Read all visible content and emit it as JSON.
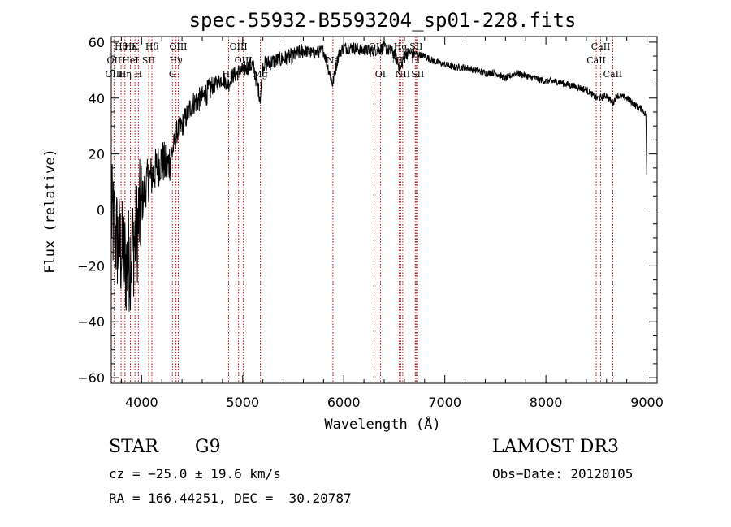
{
  "chart_data": {
    "type": "line",
    "title": "spec-55932-B5593204_sp01-228.fits",
    "xlabel": "Wavelength (Å)",
    "ylabel": "Flux (relative)",
    "xlim": [
      3700,
      9100
    ],
    "ylim": [
      -62,
      62
    ],
    "xticks": [
      4000,
      5000,
      6000,
      7000,
      8000,
      9000
    ],
    "yticks": [
      -60,
      -40,
      -20,
      0,
      20,
      40,
      60
    ],
    "series": [
      {
        "name": "spectrum",
        "x": [
          3700,
          3750,
          3800,
          3850,
          3900,
          3950,
          4000,
          4050,
          4100,
          4150,
          4200,
          4250,
          4300,
          4350,
          4400,
          4500,
          4600,
          4700,
          4800,
          4860,
          4900,
          5000,
          5100,
          5175,
          5200,
          5300,
          5400,
          5500,
          5600,
          5700,
          5800,
          5890,
          5950,
          6000,
          6100,
          6200,
          6300,
          6400,
          6500,
          6563,
          6600,
          6700,
          6800,
          6900,
          7000,
          7100,
          7200,
          7300,
          7400,
          7500,
          7600,
          7700,
          7800,
          7900,
          8000,
          8100,
          8200,
          8300,
          8400,
          8498,
          8542,
          8600,
          8662,
          8700,
          8800,
          8900,
          8950,
          8990,
          9000
        ],
        "y": [
          -2,
          -10,
          -15,
          -20,
          -15,
          -8,
          2,
          10,
          12,
          15,
          18,
          15,
          20,
          28,
          30,
          38,
          40,
          44,
          47,
          45,
          48,
          50,
          52,
          40,
          52,
          53,
          54,
          55,
          57,
          56,
          57,
          45,
          56,
          58,
          58,
          57,
          57,
          58,
          56,
          50,
          56,
          56,
          55,
          53,
          52,
          51,
          51,
          50,
          49,
          49,
          47,
          49,
          48,
          47,
          46,
          46,
          45,
          44,
          43,
          40,
          40,
          41,
          38,
          41,
          40,
          37,
          36,
          34,
          6
        ]
      }
    ],
    "line_markers": [
      {
        "label": "Hθ",
        "x": 3797,
        "row": 1
      },
      {
        "label": "OII",
        "x": 3727,
        "row": 2
      },
      {
        "label": "OIII",
        "x": 3727,
        "row": 3
      },
      {
        "label": "Hε",
        "x": 3889,
        "row": 1
      },
      {
        "label": "HeI",
        "x": 3889,
        "row": 2
      },
      {
        "label": "Hη",
        "x": 3835,
        "row": 3
      },
      {
        "label": "K",
        "x": 3934,
        "row": 1
      },
      {
        "label": "SII",
        "x": 4070,
        "row": 2
      },
      {
        "label": "H",
        "x": 3968,
        "row": 3
      },
      {
        "label": "Hδ",
        "x": 4102,
        "row": 1
      },
      {
        "label": "OIII",
        "x": 4363,
        "row": 1
      },
      {
        "label": "Hγ",
        "x": 4340,
        "row": 2
      },
      {
        "label": "G",
        "x": 4305,
        "row": 3
      },
      {
        "label": "OIII",
        "x": 4959,
        "row": 1
      },
      {
        "label": "OIII",
        "x": 5007,
        "row": 2
      },
      {
        "label": "Hβ",
        "x": 4861,
        "row": 3
      },
      {
        "label": "Mg",
        "x": 5175,
        "row": 3
      },
      {
        "label": "Na",
        "x": 5893,
        "row": 2
      },
      {
        "label": "OI",
        "x": 6300,
        "row": 1
      },
      {
        "label": "OI",
        "x": 6363,
        "row": 3
      },
      {
        "label": "Hα",
        "x": 6563,
        "row": 1
      },
      {
        "label": "SII",
        "x": 6716,
        "row": 1
      },
      {
        "label": "NII",
        "x": 6548,
        "row": 2
      },
      {
        "label": "Li",
        "x": 6708,
        "row": 2
      },
      {
        "label": "NII",
        "x": 6584,
        "row": 3
      },
      {
        "label": "SII",
        "x": 6731,
        "row": 3
      },
      {
        "label": "CaII",
        "x": 8542,
        "row": 1
      },
      {
        "label": "CaII",
        "x": 8498,
        "row": 2
      },
      {
        "label": "CaII",
        "x": 8662,
        "row": 3
      }
    ],
    "marker_lines_x": [
      3727,
      3797,
      3835,
      3889,
      3934,
      3968,
      4070,
      4102,
      4305,
      4340,
      4363,
      4861,
      4959,
      5007,
      5175,
      5893,
      6300,
      6363,
      6548,
      6563,
      6584,
      6708,
      6716,
      6731,
      8498,
      8542,
      8662
    ],
    "colors": {
      "spectrum": "#000000",
      "markers": "#cc0000",
      "axes": "#000000"
    }
  },
  "info": {
    "object_class": "STAR",
    "subclass": "G9",
    "survey": "LAMOST DR3",
    "cz": "cz = −25.0 ± 19.6 km/s",
    "obs_date": "Obs−Date: 20120105",
    "coords": "RA = 166.44251, DEC =  30.20787"
  }
}
